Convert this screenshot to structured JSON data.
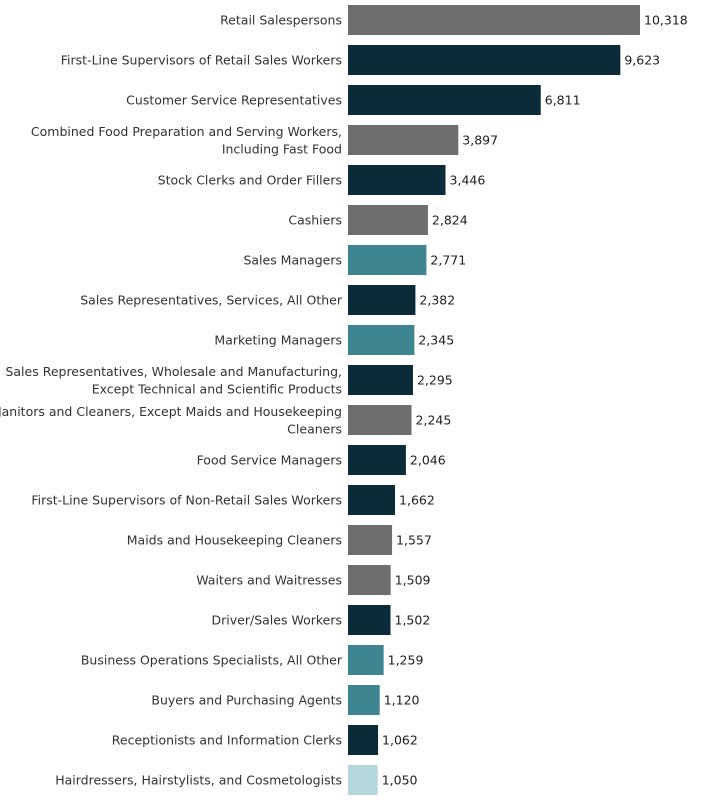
{
  "chart_data": {
    "type": "bar",
    "orientation": "horizontal",
    "title": "",
    "xlabel": "",
    "ylabel": "",
    "xlim": [
      0,
      10318
    ],
    "grid": false,
    "legend": "none",
    "value_labels": true,
    "colors": {
      "gray": "#6e6e6e",
      "dark_navy": "#0b2b38",
      "teal": "#3d8590",
      "light_blue": "#b3d7dc"
    },
    "categories": [
      [
        "Retail Salespersons"
      ],
      [
        "First-Line Supervisors of Retail Sales Workers"
      ],
      [
        "Customer Service Representatives"
      ],
      [
        "Combined Food Preparation and Serving Workers,",
        "Including Fast Food"
      ],
      [
        "Stock Clerks and Order Fillers"
      ],
      [
        "Cashiers"
      ],
      [
        "Sales Managers"
      ],
      [
        "Sales Representatives, Services, All Other"
      ],
      [
        "Marketing Managers"
      ],
      [
        "Sales Representatives, Wholesale and Manufacturing,",
        "Except Technical and Scientific Products"
      ],
      [
        "Janitors and Cleaners, Except Maids and Housekeeping",
        "Cleaners"
      ],
      [
        "Food Service Managers"
      ],
      [
        "First-Line Supervisors of Non-Retail Sales Workers"
      ],
      [
        "Maids and Housekeeping Cleaners"
      ],
      [
        "Waiters and Waitresses"
      ],
      [
        "Driver/Sales Workers"
      ],
      [
        "Business Operations Specialists, All Other"
      ],
      [
        "Buyers and Purchasing Agents"
      ],
      [
        "Receptionists and Information Clerks"
      ],
      [
        "Hairdressers, Hairstylists, and Cosmetologists"
      ]
    ],
    "values": [
      10318,
      9623,
      6811,
      3897,
      3446,
      2824,
      2771,
      2382,
      2345,
      2295,
      2245,
      2046,
      1662,
      1557,
      1509,
      1502,
      1259,
      1120,
      1062,
      1050
    ],
    "value_text": [
      "10,318",
      "9,623",
      "6,811",
      "3,897",
      "3,446",
      "2,824",
      "2,771",
      "2,382",
      "2,345",
      "2,295",
      "2,245",
      "2,046",
      "1,662",
      "1,557",
      "1,509",
      "1,502",
      "1,259",
      "1,120",
      "1,062",
      "1,050"
    ],
    "bar_colors": [
      "#6e6e6e",
      "#0b2b38",
      "#0b2b38",
      "#6e6e6e",
      "#0b2b38",
      "#6e6e6e",
      "#3d8590",
      "#0b2b38",
      "#3d8590",
      "#0b2b38",
      "#6e6e6e",
      "#0b2b38",
      "#0b2b38",
      "#6e6e6e",
      "#6e6e6e",
      "#0b2b38",
      "#3d8590",
      "#3d8590",
      "#0b2b38",
      "#b3d7dc"
    ]
  }
}
